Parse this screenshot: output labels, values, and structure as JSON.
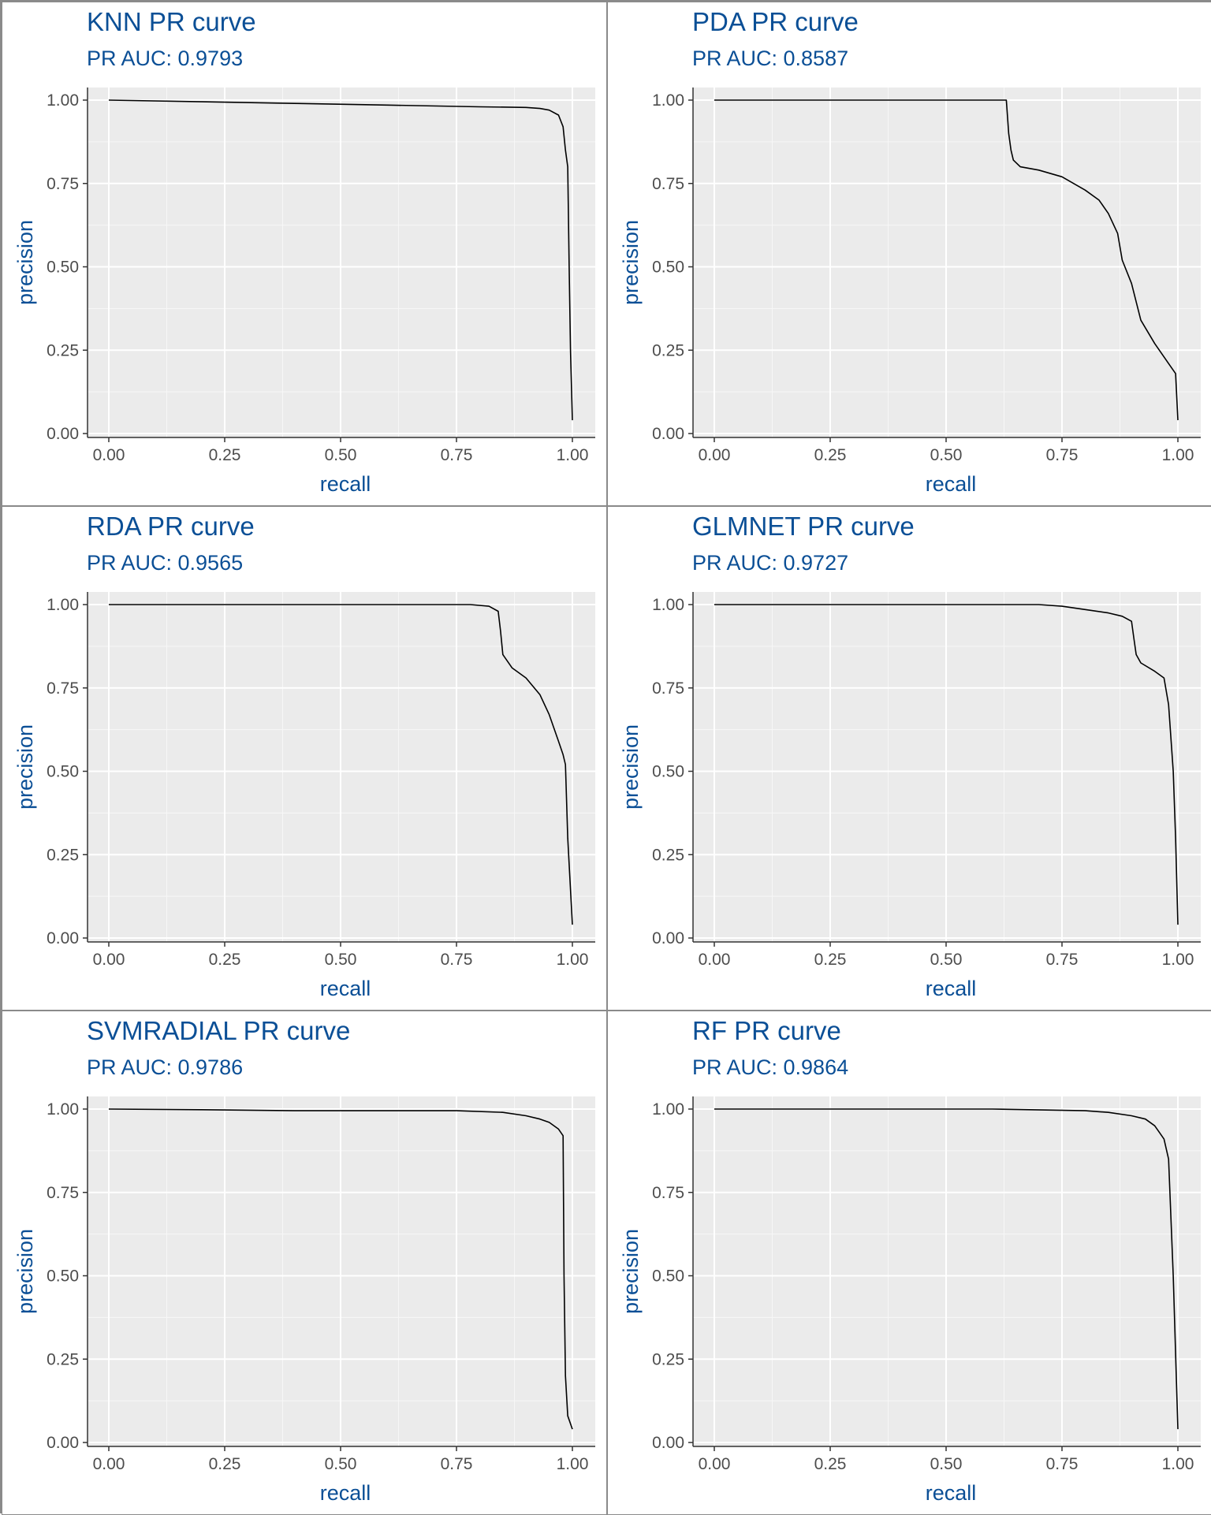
{
  "chart_data": [
    {
      "type": "line",
      "title": "KNN PR curve",
      "subtitle": "PR AUC: 0.9793",
      "xlabel": "recall",
      "ylabel": "precision",
      "xlim": [
        0,
        1
      ],
      "ylim": [
        0,
        1
      ],
      "xticks": [
        "0.00",
        "0.25",
        "0.50",
        "0.75",
        "1.00"
      ],
      "yticks": [
        "0.00",
        "0.25",
        "0.50",
        "0.75",
        "1.00"
      ],
      "grid": true,
      "series": [
        {
          "x": [
            0.0,
            0.2,
            0.4,
            0.6,
            0.8,
            0.9,
            0.93,
            0.95,
            0.97,
            0.98,
            0.985,
            0.99,
            0.993,
            0.996,
            1.0
          ],
          "y": [
            1.0,
            0.995,
            0.99,
            0.985,
            0.98,
            0.978,
            0.975,
            0.97,
            0.955,
            0.92,
            0.85,
            0.8,
            0.5,
            0.25,
            0.04
          ]
        }
      ]
    },
    {
      "type": "line",
      "title": "PDA PR curve",
      "subtitle": "PR AUC: 0.8587",
      "xlabel": "recall",
      "ylabel": "precision",
      "xlim": [
        0,
        1
      ],
      "ylim": [
        0,
        1
      ],
      "xticks": [
        "0.00",
        "0.25",
        "0.50",
        "0.75",
        "1.00"
      ],
      "yticks": [
        "0.00",
        "0.25",
        "0.50",
        "0.75",
        "1.00"
      ],
      "grid": true,
      "series": [
        {
          "x": [
            0.0,
            0.63,
            0.635,
            0.64,
            0.645,
            0.66,
            0.7,
            0.75,
            0.8,
            0.83,
            0.85,
            0.87,
            0.88,
            0.9,
            0.92,
            0.95,
            0.98,
            0.995,
            1.0
          ],
          "y": [
            1.0,
            1.0,
            0.9,
            0.85,
            0.82,
            0.8,
            0.79,
            0.77,
            0.73,
            0.7,
            0.66,
            0.6,
            0.52,
            0.45,
            0.34,
            0.27,
            0.21,
            0.18,
            0.04
          ]
        }
      ]
    },
    {
      "type": "line",
      "title": "RDA PR curve",
      "subtitle": "PR AUC: 0.9565",
      "xlabel": "recall",
      "ylabel": "precision",
      "xlim": [
        0,
        1
      ],
      "ylim": [
        0,
        1
      ],
      "xticks": [
        "0.00",
        "0.25",
        "0.50",
        "0.75",
        "1.00"
      ],
      "yticks": [
        "0.00",
        "0.25",
        "0.50",
        "0.75",
        "1.00"
      ],
      "grid": true,
      "series": [
        {
          "x": [
            0.0,
            0.78,
            0.82,
            0.84,
            0.845,
            0.85,
            0.87,
            0.9,
            0.93,
            0.95,
            0.97,
            0.98,
            0.985,
            0.99,
            1.0
          ],
          "y": [
            1.0,
            1.0,
            0.995,
            0.98,
            0.92,
            0.85,
            0.81,
            0.78,
            0.73,
            0.67,
            0.59,
            0.55,
            0.52,
            0.3,
            0.04
          ]
        }
      ]
    },
    {
      "type": "line",
      "title": "GLMNET PR curve",
      "subtitle": "PR AUC: 0.9727",
      "xlabel": "recall",
      "ylabel": "precision",
      "xlim": [
        0,
        1
      ],
      "ylim": [
        0,
        1
      ],
      "xticks": [
        "0.00",
        "0.25",
        "0.50",
        "0.75",
        "1.00"
      ],
      "yticks": [
        "0.00",
        "0.25",
        "0.50",
        "0.75",
        "1.00"
      ],
      "grid": true,
      "series": [
        {
          "x": [
            0.0,
            0.7,
            0.75,
            0.8,
            0.85,
            0.88,
            0.9,
            0.905,
            0.91,
            0.92,
            0.95,
            0.97,
            0.98,
            0.99,
            0.995,
            1.0
          ],
          "y": [
            1.0,
            1.0,
            0.995,
            0.985,
            0.975,
            0.965,
            0.95,
            0.9,
            0.85,
            0.825,
            0.8,
            0.78,
            0.7,
            0.5,
            0.3,
            0.04
          ]
        }
      ]
    },
    {
      "type": "line",
      "title": "SVMRADIAL PR curve",
      "subtitle": "PR AUC: 0.9786",
      "xlabel": "recall",
      "ylabel": "precision",
      "xlim": [
        0,
        1
      ],
      "ylim": [
        0,
        1
      ],
      "xticks": [
        "0.00",
        "0.25",
        "0.50",
        "0.75",
        "1.00"
      ],
      "yticks": [
        "0.00",
        "0.25",
        "0.50",
        "0.75",
        "1.00"
      ],
      "grid": true,
      "series": [
        {
          "x": [
            0.0,
            0.2,
            0.4,
            0.6,
            0.75,
            0.85,
            0.9,
            0.93,
            0.95,
            0.97,
            0.98,
            0.982,
            0.985,
            0.99,
            1.0
          ],
          "y": [
            1.0,
            0.998,
            0.995,
            0.995,
            0.995,
            0.99,
            0.98,
            0.97,
            0.96,
            0.94,
            0.92,
            0.5,
            0.2,
            0.08,
            0.04
          ]
        }
      ]
    },
    {
      "type": "line",
      "title": "RF PR curve",
      "subtitle": "PR AUC: 0.9864",
      "xlabel": "recall",
      "ylabel": "precision",
      "xlim": [
        0,
        1
      ],
      "ylim": [
        0,
        1
      ],
      "xticks": [
        "0.00",
        "0.25",
        "0.50",
        "0.75",
        "1.00"
      ],
      "yticks": [
        "0.00",
        "0.25",
        "0.50",
        "0.75",
        "1.00"
      ],
      "grid": true,
      "series": [
        {
          "x": [
            0.0,
            0.6,
            0.8,
            0.85,
            0.9,
            0.93,
            0.95,
            0.96,
            0.97,
            0.98,
            0.99,
            1.0
          ],
          "y": [
            1.0,
            1.0,
            0.995,
            0.99,
            0.98,
            0.97,
            0.95,
            0.93,
            0.91,
            0.85,
            0.5,
            0.04
          ]
        }
      ]
    }
  ]
}
